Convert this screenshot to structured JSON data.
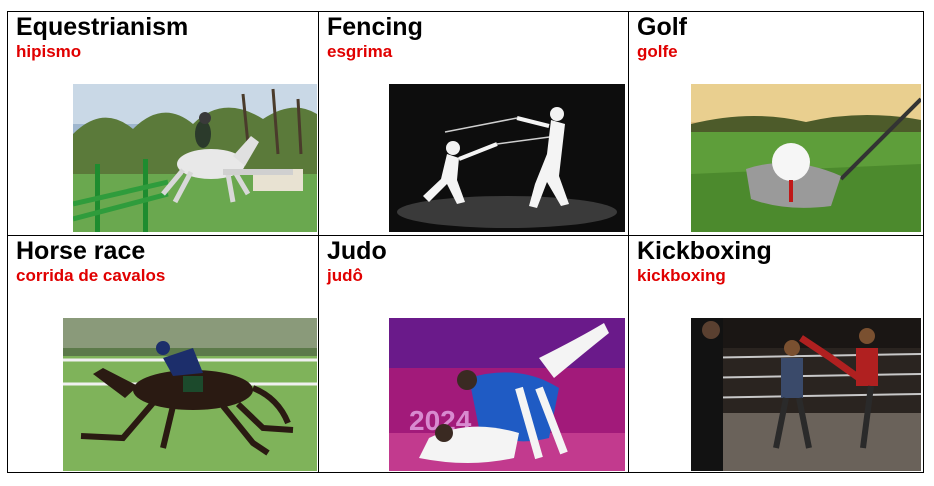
{
  "cells": [
    {
      "title": "Equestrianism",
      "subtitle": "hipismo",
      "image": "show-jumping-horse-photo"
    },
    {
      "title": "Fencing",
      "subtitle": "esgrima",
      "image": "fencers-duel-photo"
    },
    {
      "title": "Golf",
      "subtitle": "golfe",
      "image": "golf-ball-and-club-photo"
    },
    {
      "title": "Horse race",
      "subtitle": "corrida de cavalos",
      "image": "racehorse-and-jockey-photo"
    },
    {
      "title": "Judo",
      "subtitle": "judô",
      "image": "judo-throw-photo"
    },
    {
      "title": "Kickboxing",
      "subtitle": "kickboxing",
      "image": "kickboxing-fight-photo"
    }
  ],
  "colors": {
    "title": "#000000",
    "subtitle": "#e00000",
    "border": "#000000"
  }
}
